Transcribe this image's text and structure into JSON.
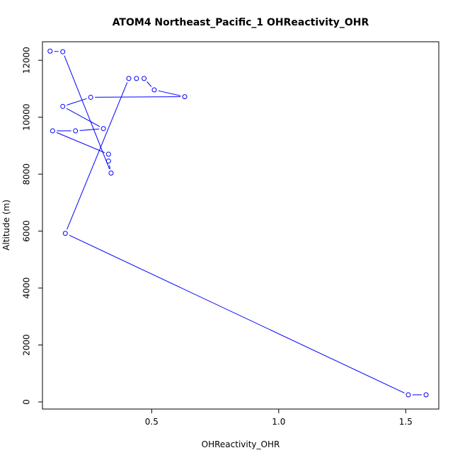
{
  "chart_data": {
    "type": "line",
    "title": "ATOM4 Northeast_Pacific_1 OHReactivity_OHR",
    "xlabel": "OHReactivity_OHR",
    "ylabel": "Altitude (m)",
    "xlim": [
      0.07,
      1.63
    ],
    "ylim": [
      -250,
      12650
    ],
    "x_ticks": [
      0.5,
      1.0,
      1.5
    ],
    "x_tick_labels": [
      "0.5",
      "1.0",
      "1.5"
    ],
    "y_ticks": [
      0,
      2000,
      4000,
      6000,
      8000,
      10000,
      12000
    ],
    "y_tick_labels": [
      "0",
      "2000",
      "4000",
      "6000",
      "8000",
      "10000",
      "12000"
    ],
    "colors": {
      "series": "#0000ff",
      "axis": "#000000"
    },
    "grid": false,
    "legend": "none",
    "series": [
      {
        "x": [
          1.58,
          1.51,
          0.16,
          0.41,
          0.44,
          0.47,
          0.51,
          0.63,
          0.26,
          0.15,
          0.31,
          0.2,
          0.11,
          0.33,
          0.33,
          0.34,
          0.15,
          0.1
        ],
        "y": [
          250,
          250,
          5920,
          11360,
          11360,
          11360,
          10960,
          10720,
          10700,
          10380,
          9600,
          9520,
          9520,
          8700,
          8460,
          8040,
          12300,
          12320
        ]
      }
    ]
  }
}
